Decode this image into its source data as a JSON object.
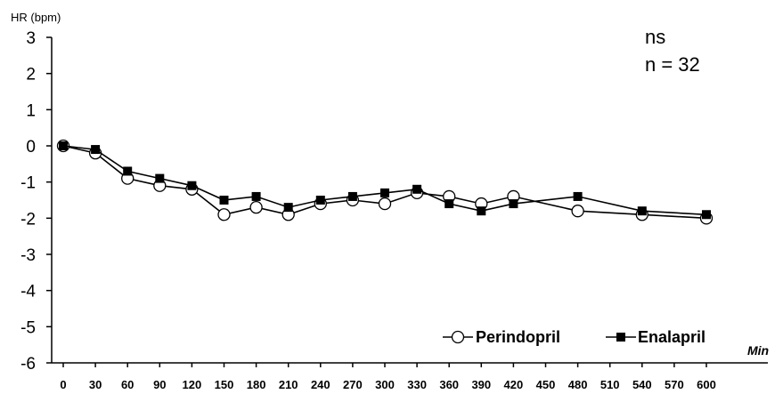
{
  "chart_data": {
    "type": "line",
    "title": "",
    "ylabel": "HR (bpm)",
    "xlabel": "Min",
    "ylim": [
      -6,
      3
    ],
    "yticks": [
      3,
      2,
      1,
      0,
      -1,
      -2,
      -3,
      -4,
      -5,
      -6
    ],
    "xticks": [
      0,
      30,
      60,
      90,
      120,
      150,
      180,
      210,
      240,
      270,
      300,
      330,
      360,
      390,
      420,
      450,
      480,
      510,
      540,
      570,
      600
    ],
    "grid": false,
    "legend_position": "bottom-right",
    "annotations": [
      "ns",
      "n = 32"
    ],
    "series": [
      {
        "name": "Perindopril",
        "marker": "open-circle",
        "x": [
          0,
          30,
          60,
          90,
          120,
          150,
          180,
          210,
          240,
          270,
          300,
          330,
          360,
          390,
          420,
          480,
          540,
          600
        ],
        "values": [
          0,
          -0.2,
          -0.9,
          -1.1,
          -1.2,
          -1.9,
          -1.7,
          -1.9,
          -1.6,
          -1.5,
          -1.6,
          -1.3,
          -1.4,
          -1.6,
          -1.4,
          -1.8,
          -1.9,
          -2.0
        ]
      },
      {
        "name": "Enalapril",
        "marker": "filled-square",
        "x": [
          0,
          30,
          60,
          90,
          120,
          150,
          180,
          210,
          240,
          270,
          300,
          330,
          360,
          390,
          420,
          480,
          540,
          600
        ],
        "values": [
          0,
          -0.1,
          -0.7,
          -0.9,
          -1.1,
          -1.5,
          -1.4,
          -1.7,
          -1.5,
          -1.4,
          -1.3,
          -1.2,
          -1.6,
          -1.8,
          -1.6,
          -1.4,
          -1.8,
          -1.9
        ]
      }
    ]
  }
}
